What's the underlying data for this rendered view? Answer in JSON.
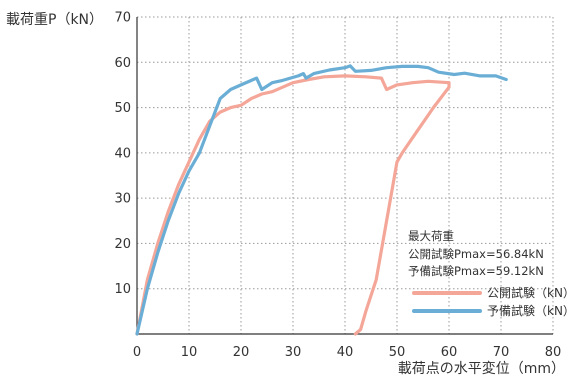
{
  "chart_data": {
    "type": "line",
    "xlabel": "載荷点の水平変位（mm）",
    "ylabel": "載荷重P（kN）",
    "xlim": [
      0,
      80
    ],
    "ylim": [
      0,
      70
    ],
    "x_ticks": [
      "0",
      "10",
      "20",
      "30",
      "40",
      "50",
      "60",
      "70",
      "80"
    ],
    "y_ticks": [
      "10",
      "20",
      "30",
      "40",
      "50",
      "60",
      "70"
    ],
    "grid": "dotted",
    "legend_position": "lower-right",
    "series": [
      {
        "name": "公開試験（kN）",
        "color": "#f4a698",
        "points": [
          [
            0,
            0
          ],
          [
            2,
            12
          ],
          [
            4,
            20
          ],
          [
            6,
            27
          ],
          [
            8,
            33
          ],
          [
            10,
            38
          ],
          [
            12,
            43
          ],
          [
            14,
            47
          ],
          [
            16,
            49
          ],
          [
            18,
            50
          ],
          [
            20,
            50.5
          ],
          [
            22,
            52
          ],
          [
            24,
            53
          ],
          [
            26,
            53.5
          ],
          [
            28,
            54.5
          ],
          [
            30,
            55.5
          ],
          [
            33,
            56.2
          ],
          [
            36,
            56.8
          ],
          [
            40,
            57
          ],
          [
            44,
            56.8
          ],
          [
            47,
            56.5
          ],
          [
            48,
            54
          ],
          [
            50,
            55
          ],
          [
            53,
            55.5
          ],
          [
            56,
            55.8
          ],
          [
            60,
            55.5
          ],
          [
            60,
            54.5
          ],
          [
            57,
            50
          ],
          [
            54,
            45
          ],
          [
            51,
            40
          ],
          [
            50,
            38
          ],
          [
            48,
            25
          ],
          [
            46,
            12
          ],
          [
            44,
            5
          ],
          [
            43,
            1
          ],
          [
            42,
            0
          ]
        ]
      },
      {
        "name": "予備試験（kN）",
        "color": "#6aaed6",
        "points": [
          [
            0,
            0
          ],
          [
            2,
            10
          ],
          [
            4,
            18
          ],
          [
            6,
            25
          ],
          [
            8,
            31
          ],
          [
            10,
            36
          ],
          [
            12,
            40
          ],
          [
            14,
            46
          ],
          [
            16,
            52
          ],
          [
            18,
            54
          ],
          [
            20,
            55
          ],
          [
            22,
            56
          ],
          [
            23,
            56.5
          ],
          [
            24,
            54
          ],
          [
            26,
            55.5
          ],
          [
            28,
            56
          ],
          [
            31,
            57
          ],
          [
            32,
            57.5
          ],
          [
            32.5,
            56.5
          ],
          [
            34,
            57.5
          ],
          [
            37,
            58.3
          ],
          [
            40,
            58.8
          ],
          [
            41,
            59.2
          ],
          [
            42,
            58
          ],
          [
            45,
            58.2
          ],
          [
            48,
            58.8
          ],
          [
            51,
            59.1
          ],
          [
            54,
            59.1
          ],
          [
            56,
            58.8
          ],
          [
            58,
            57.8
          ],
          [
            61,
            57.3
          ],
          [
            63,
            57.6
          ],
          [
            66,
            57
          ],
          [
            69,
            57
          ],
          [
            71,
            56.2
          ]
        ]
      }
    ],
    "annotation": {
      "heading": "最大荷重",
      "lines": [
        "公開試験Pmax=56.84kN",
        "予備試験Pmax=59.12kN"
      ]
    }
  }
}
